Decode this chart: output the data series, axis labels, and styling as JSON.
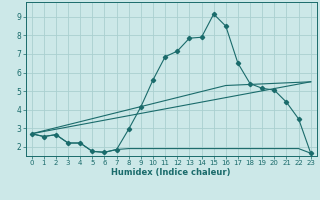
{
  "xlabel": "Humidex (Indice chaleur)",
  "background_color": "#cce8e8",
  "grid_color": "#aad0d0",
  "line_color": "#1a6b6b",
  "xlim": [
    -0.5,
    23.5
  ],
  "ylim": [
    1.5,
    9.8
  ],
  "xticks": [
    0,
    1,
    2,
    3,
    4,
    5,
    6,
    7,
    8,
    9,
    10,
    11,
    12,
    13,
    14,
    15,
    16,
    17,
    18,
    19,
    20,
    21,
    22,
    23
  ],
  "yticks": [
    2,
    3,
    4,
    5,
    6,
    7,
    8,
    9
  ],
  "curve1_x": [
    0,
    1,
    2,
    3,
    4,
    5,
    6,
    7,
    8,
    9,
    10,
    11,
    12,
    13,
    14,
    15,
    16,
    17,
    18,
    19,
    20,
    21,
    22,
    23
  ],
  "curve1_y": [
    2.7,
    2.55,
    2.65,
    2.2,
    2.2,
    1.75,
    1.7,
    1.85,
    2.95,
    4.15,
    5.6,
    6.85,
    7.15,
    7.85,
    7.9,
    9.15,
    8.5,
    6.5,
    5.4,
    5.15,
    5.05,
    4.4,
    3.5,
    1.65
  ],
  "curve2_x": [
    0,
    1,
    2,
    3,
    4,
    5,
    6,
    7,
    8,
    9,
    10,
    11,
    12,
    13,
    14,
    15,
    16,
    17,
    18,
    19,
    20,
    21,
    22,
    23
  ],
  "curve2_y": [
    2.7,
    2.55,
    2.65,
    2.2,
    2.2,
    1.75,
    1.7,
    1.85,
    1.9,
    1.9,
    1.9,
    1.9,
    1.9,
    1.9,
    1.9,
    1.9,
    1.9,
    1.9,
    1.9,
    1.9,
    1.9,
    1.9,
    1.9,
    1.65
  ],
  "curve3_x": [
    0,
    23
  ],
  "curve3_y": [
    2.7,
    5.5
  ],
  "curve4_x": [
    0,
    16,
    23
  ],
  "curve4_y": [
    2.7,
    5.3,
    5.5
  ]
}
